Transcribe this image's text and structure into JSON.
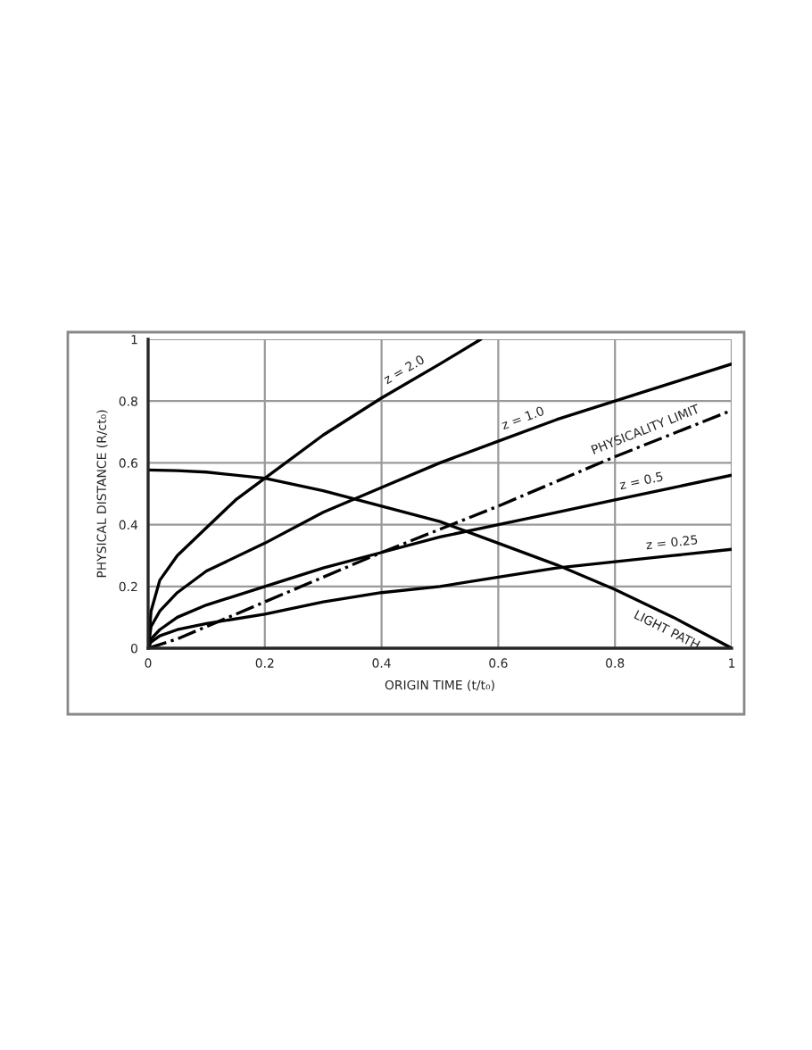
{
  "chart_data": {
    "type": "line",
    "xlabel": "ORIGIN TIME (t/t₀)",
    "ylabel": "PHYSICAL DISTANCE (R/ct₀)",
    "xlim": [
      0,
      1
    ],
    "ylim": [
      0,
      1
    ],
    "xticks": [
      0,
      0.2,
      0.4,
      0.6,
      0.8,
      1
    ],
    "yticks": [
      0,
      0.2,
      0.4,
      0.6,
      0.8,
      1
    ],
    "grid": true,
    "legend": false,
    "marker": "none",
    "series": [
      {
        "color": "#000000",
        "line_style": "solid",
        "x": [
          0,
          0.005,
          0.02,
          0.05,
          0.1,
          0.15,
          0.2,
          0.3,
          0.4,
          0.5,
          0.57
        ],
        "values": [
          0,
          0.12,
          0.22,
          0.3,
          0.39,
          0.48,
          0.55,
          0.69,
          0.81,
          0.92,
          1.0
        ]
      },
      {
        "color": "#000000",
        "line_style": "solid",
        "x": [
          0,
          0.005,
          0.02,
          0.05,
          0.1,
          0.2,
          0.3,
          0.4,
          0.5,
          0.6,
          0.7,
          0.8,
          0.9,
          1.0
        ],
        "values": [
          0,
          0.07,
          0.12,
          0.18,
          0.25,
          0.34,
          0.44,
          0.52,
          0.6,
          0.67,
          0.74,
          0.8,
          0.86,
          0.92
        ]
      },
      {
        "color": "#000000",
        "line_style": "dashdot",
        "x": [
          0,
          0.05,
          0.1,
          0.2,
          0.4,
          0.6,
          0.8,
          1.0
        ],
        "values": [
          0,
          0.03,
          0.07,
          0.15,
          0.31,
          0.46,
          0.62,
          0.77
        ]
      },
      {
        "color": "#000000",
        "line_style": "solid",
        "x": [
          0,
          0.005,
          0.02,
          0.05,
          0.1,
          0.2,
          0.3,
          0.4,
          0.5,
          0.6,
          0.7,
          0.8,
          0.9,
          1.0
        ],
        "values": [
          0,
          0.03,
          0.06,
          0.1,
          0.14,
          0.2,
          0.26,
          0.31,
          0.36,
          0.4,
          0.44,
          0.48,
          0.52,
          0.56
        ]
      },
      {
        "color": "#000000",
        "line_style": "solid",
        "x": [
          0,
          0.005,
          0.02,
          0.05,
          0.1,
          0.2,
          0.3,
          0.4,
          0.5,
          0.6,
          0.7,
          0.8,
          0.9,
          1.0
        ],
        "values": [
          0,
          0.02,
          0.04,
          0.06,
          0.08,
          0.11,
          0.15,
          0.18,
          0.2,
          0.23,
          0.26,
          0.28,
          0.3,
          0.32
        ]
      },
      {
        "color": "#000000",
        "line_style": "solid",
        "x": [
          0,
          0.05,
          0.1,
          0.2,
          0.3,
          0.4,
          0.5,
          0.6,
          0.7,
          0.8,
          0.9,
          1.0
        ],
        "values": [
          0.577,
          0.575,
          0.57,
          0.55,
          0.51,
          0.46,
          0.41,
          0.34,
          0.27,
          0.19,
          0.1,
          0
        ]
      }
    ],
    "annotations": [
      {
        "text": "z = 2.0",
        "x": 0.45,
        "y": 0.865
      },
      {
        "text": "z = 1.0",
        "x": 0.65,
        "y": 0.705
      },
      {
        "text": "PHYSICALITY LIMIT",
        "x": 0.86,
        "y": 0.668
      },
      {
        "text": "z = 0.5",
        "x": 0.85,
        "y": 0.5
      },
      {
        "text": "z = 0.25",
        "x": 0.9,
        "y": 0.3
      },
      {
        "text": "LIGHT PATH",
        "x": 0.9,
        "y": 0.1
      }
    ]
  }
}
